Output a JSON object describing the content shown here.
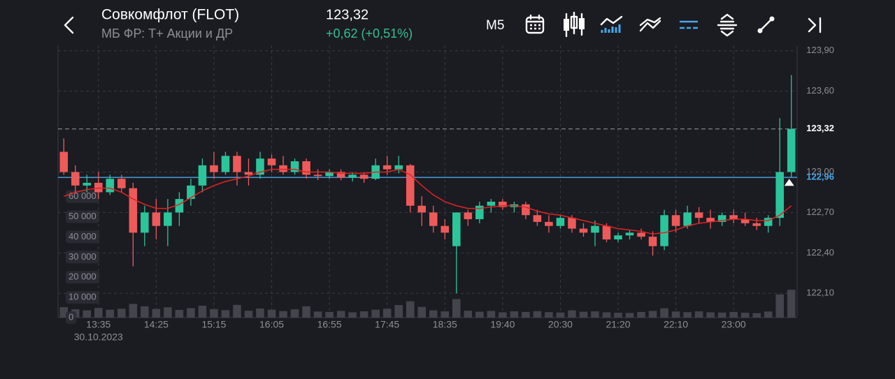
{
  "header": {
    "title": "Совкомфлот (FLOT)",
    "subtitle": "МБ ФР: Т+ Акции и ДР",
    "price": "123,32",
    "change": "+0,62 (+0,51%)",
    "timeframe": "M5"
  },
  "chart_data": {
    "type": "candlestick",
    "up_color": "#2bc59b",
    "down_color": "#ee5a5a",
    "grid": true,
    "categories": [
      null,
      null,
      null,
      "13:35",
      null,
      null,
      null,
      null,
      "14:25",
      null,
      null,
      null,
      null,
      "15:15",
      null,
      null,
      null,
      null,
      "16:05",
      null,
      null,
      null,
      null,
      "16:55",
      null,
      null,
      null,
      null,
      "17:45",
      null,
      null,
      null,
      null,
      "18:35",
      null,
      null,
      null,
      null,
      "19:40",
      null,
      null,
      null,
      null,
      "20:30",
      null,
      null,
      null,
      null,
      "21:20",
      null,
      null,
      null,
      null,
      "22:10",
      null,
      null,
      null,
      null,
      "23:00",
      null,
      null,
      null,
      null,
      null
    ],
    "date": "30.10.2023",
    "open": [
      123.15,
      123.0,
      122.9,
      122.92,
      122.85,
      122.95,
      122.88,
      122.55,
      122.7,
      122.6,
      122.7,
      122.8,
      122.9,
      123.05,
      123.0,
      123.12,
      123.0,
      122.98,
      123.1,
      123.05,
      123.0,
      123.08,
      122.98,
      122.97,
      123.0,
      122.96,
      122.98,
      122.95,
      123.05,
      123.02,
      123.05,
      122.75,
      122.7,
      122.6,
      122.45,
      122.7,
      122.65,
      122.75,
      122.78,
      122.74,
      122.76,
      122.68,
      122.63,
      122.6,
      122.66,
      122.58,
      122.55,
      122.6,
      122.5,
      122.53,
      122.55,
      122.52,
      122.45,
      122.68,
      122.6,
      122.7,
      122.66,
      122.63,
      122.68,
      122.65,
      122.62,
      122.6,
      122.66,
      123.0
    ],
    "high": [
      123.25,
      123.05,
      122.98,
      123.0,
      122.98,
      122.98,
      122.92,
      122.75,
      122.8,
      122.8,
      122.85,
      122.95,
      123.1,
      123.15,
      123.15,
      123.15,
      123.1,
      123.15,
      123.13,
      123.12,
      123.1,
      123.1,
      123.02,
      123.02,
      123.02,
      123.0,
      123.0,
      123.1,
      123.12,
      123.12,
      123.06,
      122.82,
      122.75,
      122.65,
      122.7,
      122.72,
      122.78,
      122.8,
      122.8,
      122.78,
      122.78,
      122.72,
      122.68,
      122.68,
      122.68,
      122.62,
      122.64,
      122.62,
      122.55,
      122.57,
      122.58,
      122.56,
      122.72,
      122.72,
      122.75,
      122.74,
      122.72,
      122.7,
      122.72,
      122.7,
      122.66,
      122.68,
      123.4,
      123.72
    ],
    "low": [
      122.98,
      122.85,
      122.85,
      122.8,
      122.83,
      122.85,
      122.3,
      122.45,
      122.5,
      122.45,
      122.6,
      122.75,
      122.85,
      122.95,
      122.98,
      122.9,
      122.9,
      122.95,
      123.0,
      122.98,
      122.98,
      122.95,
      122.94,
      122.95,
      122.94,
      122.93,
      122.92,
      122.94,
      122.98,
      122.99,
      122.7,
      122.6,
      122.55,
      122.5,
      122.1,
      122.6,
      122.62,
      122.7,
      122.72,
      122.7,
      122.65,
      122.6,
      122.55,
      122.58,
      122.55,
      122.52,
      122.45,
      122.48,
      122.48,
      122.5,
      122.5,
      122.38,
      122.42,
      122.55,
      122.58,
      122.62,
      122.58,
      122.6,
      122.62,
      122.6,
      122.57,
      122.55,
      122.6,
      122.96
    ],
    "close": [
      123.0,
      122.9,
      122.92,
      122.85,
      122.95,
      122.88,
      122.55,
      122.7,
      122.6,
      122.7,
      122.8,
      122.9,
      123.05,
      123.0,
      123.12,
      123.0,
      122.98,
      123.1,
      123.05,
      123.0,
      123.08,
      122.98,
      122.97,
      123.0,
      122.96,
      122.98,
      122.95,
      123.05,
      123.02,
      123.05,
      122.75,
      122.7,
      122.6,
      122.55,
      122.7,
      122.65,
      122.75,
      122.78,
      122.74,
      122.76,
      122.68,
      122.63,
      122.6,
      122.66,
      122.58,
      122.55,
      122.6,
      122.5,
      122.53,
      122.55,
      122.52,
      122.45,
      122.68,
      122.6,
      122.7,
      122.66,
      122.63,
      122.68,
      122.65,
      122.62,
      122.6,
      122.66,
      123.0,
      123.32
    ],
    "ma": {
      "color": "#e02424",
      "values": [
        122.82,
        122.85,
        122.87,
        122.88,
        122.88,
        122.85,
        122.8,
        122.76,
        122.73,
        122.73,
        122.76,
        122.81,
        122.86,
        122.9,
        122.93,
        122.95,
        122.97,
        123.0,
        123.02,
        123.02,
        123.02,
        123.0,
        123.0,
        123.0,
        122.99,
        122.99,
        122.99,
        123.0,
        123.0,
        123.02,
        122.98,
        122.9,
        122.83,
        122.78,
        122.75,
        122.73,
        122.73,
        122.74,
        122.75,
        122.75,
        122.74,
        122.71,
        122.69,
        122.68,
        122.66,
        122.64,
        122.62,
        122.6,
        122.58,
        122.57,
        122.56,
        122.54,
        122.55,
        122.57,
        122.6,
        122.62,
        122.63,
        122.64,
        122.65,
        122.65,
        122.64,
        122.64,
        122.68,
        122.75
      ]
    },
    "volume": {
      "color": "#44444d",
      "values": [
        5200,
        4100,
        3600,
        4800,
        3900,
        4400,
        6800,
        5600,
        4300,
        5100,
        3800,
        4700,
        5900,
        4200,
        3700,
        6300,
        3400,
        4500,
        3900,
        3200,
        4100,
        5600,
        3000,
        2800,
        3300,
        2600,
        3100,
        3900,
        4400,
        6200,
        8100,
        5300,
        3600,
        3100,
        9200,
        3400,
        2900,
        3300,
        2600,
        3100,
        2800,
        3200,
        2700,
        2500,
        3600,
        2900,
        3100,
        2600,
        2400,
        2300,
        2800,
        3300,
        4600,
        3000,
        2700,
        3100,
        2600,
        2500,
        2800,
        2400,
        2200,
        3000,
        11500,
        13800
      ]
    },
    "ylim": [
      121.92,
      123.94
    ],
    "yticks": [
      {
        "value": 122.1,
        "label": "122,10"
      },
      {
        "value": 122.4,
        "label": "122,40"
      },
      {
        "value": 122.7,
        "label": "122,70"
      },
      {
        "value": 123.0,
        "label": "123,00"
      },
      {
        "value": 123.6,
        "label": "123,60"
      },
      {
        "value": 123.9,
        "label": "123,90"
      }
    ],
    "y2lim": [
      0,
      135000
    ],
    "y2ticks": [
      0,
      {
        "value": 10000,
        "label": "10 000"
      },
      {
        "value": 20000,
        "label": "20 000"
      },
      {
        "value": 30000,
        "label": "30 000"
      },
      {
        "value": 40000,
        "label": "40 000"
      },
      {
        "value": 50000,
        "label": "50 000"
      },
      {
        "value": 60000,
        "label": "60 000"
      }
    ],
    "last_price": {
      "value": 123.32,
      "label": "123,32"
    },
    "level": {
      "value": 122.96,
      "label": "122,96",
      "color": "#4aa8e8"
    }
  }
}
